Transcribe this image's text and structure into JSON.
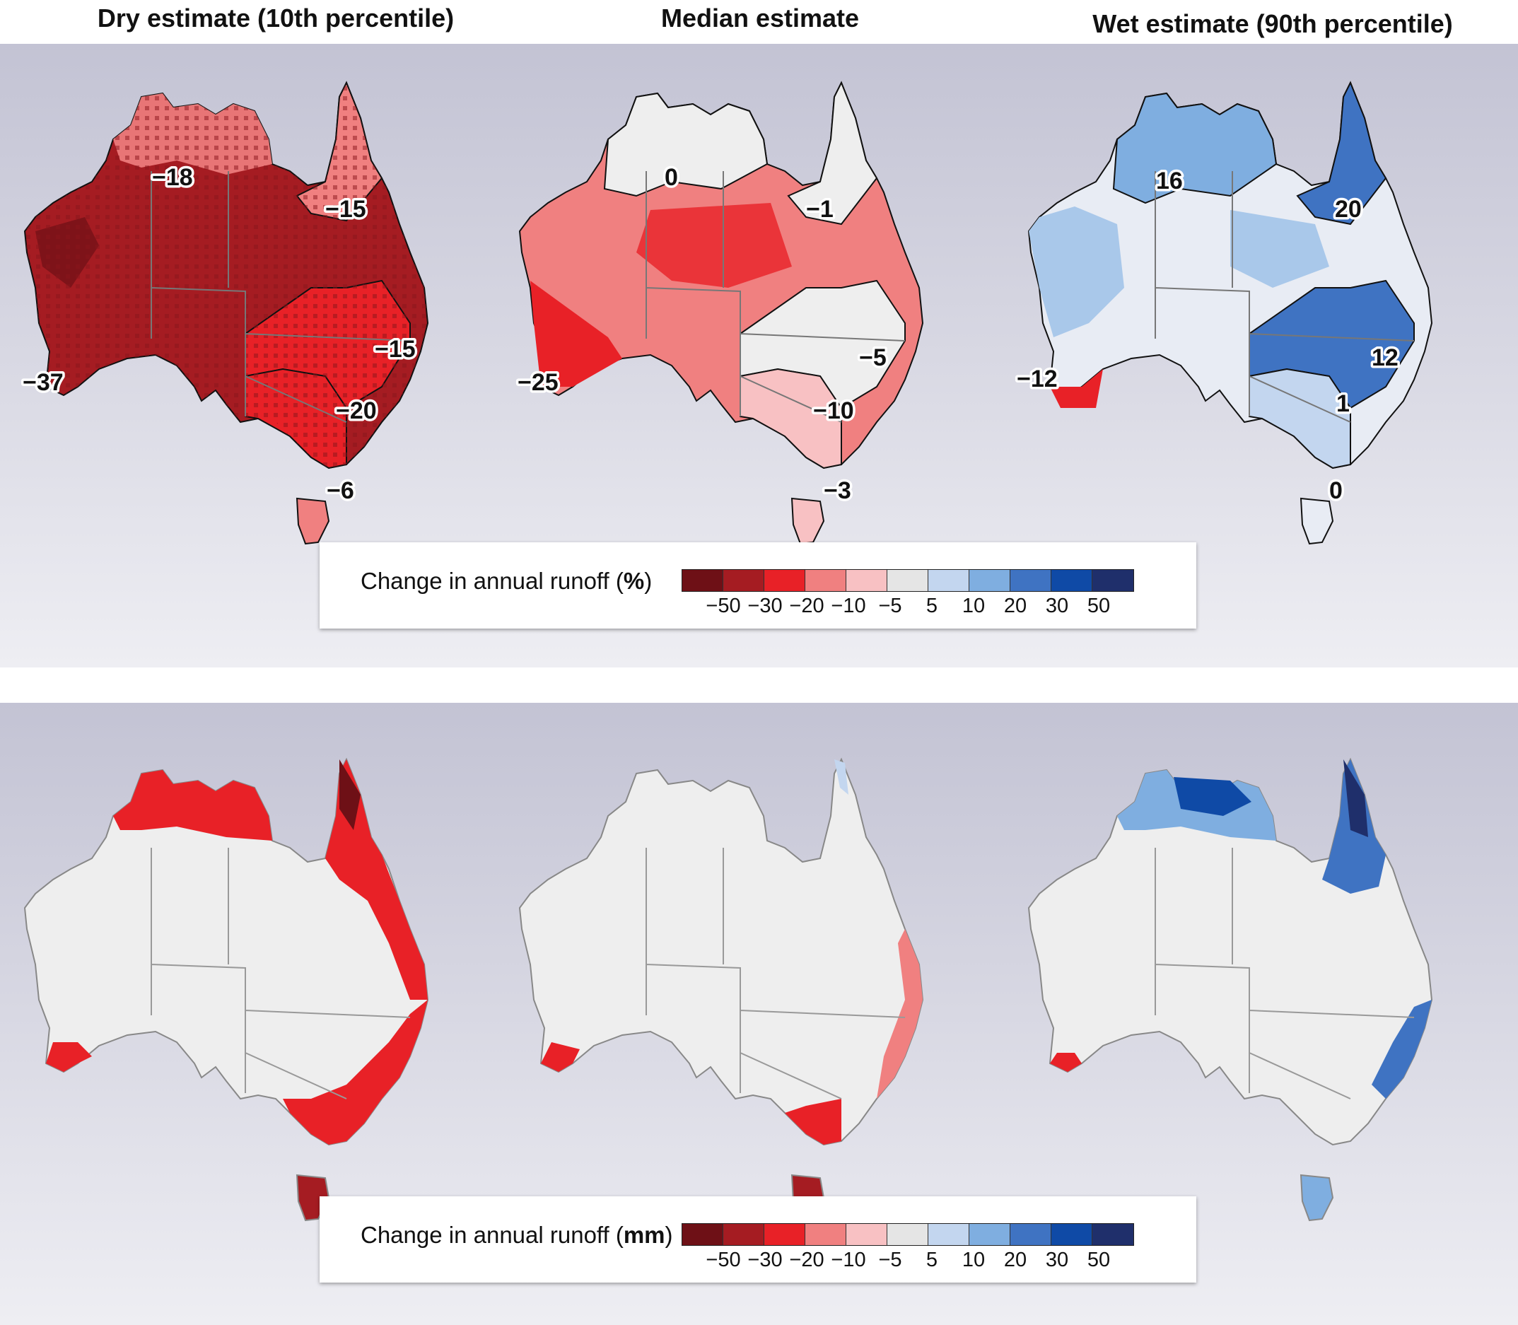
{
  "titles": {
    "dry": "Dry estimate (10th percentile)",
    "median": "Median estimate",
    "wet": "Wet estimate (90th percentile)"
  },
  "legend_pct": {
    "label_prefix": "Change in annual runoff (",
    "unit": "%",
    "label_suffix": ")"
  },
  "legend_mm": {
    "label_prefix": "Change in annual runoff (",
    "unit": "mm",
    "label_suffix": ")"
  },
  "legend_ticks": [
    "−50",
    "−30",
    "−20",
    "−10",
    "−5",
    "5",
    "10",
    "20",
    "30",
    "50"
  ],
  "legend_colors": [
    "#6e1016",
    "#a51c22",
    "#e82127",
    "#f08080",
    "#f8c1c3",
    "#e5e5e5",
    "#c3d6ef",
    "#7faee0",
    "#3f73c2",
    "#0f4aa6",
    "#1f2f6b"
  ],
  "maps": {
    "dry_pct": {
      "fill": "#a51c22",
      "labels": {
        "west": "−37",
        "north_west": "−18",
        "north_east": "−15",
        "east": "−15",
        "south_east": "−20",
        "tasmania": "−6"
      }
    },
    "median_pct": {
      "fill": "#f08080",
      "labels": {
        "west": "−25",
        "north_west": "0",
        "north_east": "−1",
        "east": "−5",
        "south_east": "−10",
        "tasmania": "−3"
      }
    },
    "wet_pct": {
      "fill": "#c3d6ef",
      "labels": {
        "west": "−12",
        "north_west": "16",
        "north_east": "20",
        "east": "12",
        "south_east": "1",
        "tasmania": "0"
      }
    },
    "dry_mm": {
      "fill": "#eeeeee"
    },
    "median_mm": {
      "fill": "#eeeeee"
    },
    "wet_mm": {
      "fill": "#eeeeee"
    }
  }
}
